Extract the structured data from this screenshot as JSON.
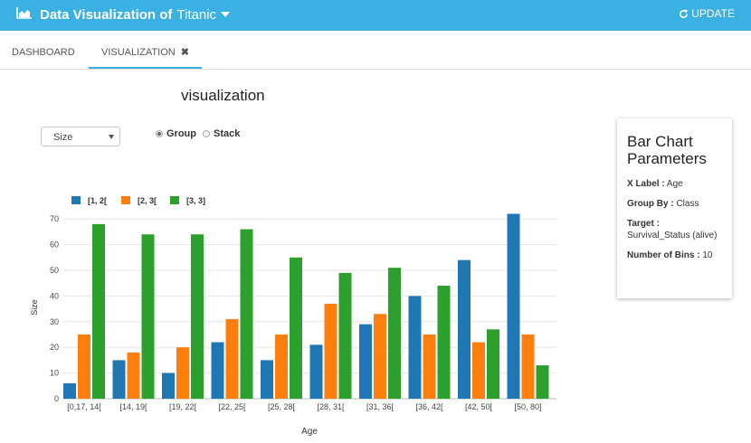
{
  "header": {
    "title_prefix": "Data Visualization of",
    "app_name": "Titanic",
    "update_label": "UPDATE"
  },
  "tabs": [
    {
      "label": "DASHBOARD"
    },
    {
      "label": "VISUALIZATION",
      "close": "✖"
    }
  ],
  "page": {
    "title": "visualization"
  },
  "controls": {
    "select_value": "Size",
    "modes": [
      {
        "label": "Group",
        "selected": true
      },
      {
        "label": "Stack",
        "selected": false
      }
    ]
  },
  "params": {
    "title": "Bar Chart Parameters",
    "x_label_key": "X Label :",
    "x_label_value": "Age",
    "group_by_key": "Group By :",
    "group_by_value": "Class",
    "target_key": "Target :",
    "target_value": "Survival_Status (alive)",
    "bins_key": "Number of Bins :",
    "bins_value": "10"
  },
  "chart_data": {
    "type": "bar",
    "mode": "group",
    "categories": [
      "[0,17, 14[",
      "[14, 19[",
      "[19, 22[",
      "[22, 25[",
      "[25, 28[",
      "[28, 31[",
      "[31, 36[",
      "[36, 42[",
      "[42, 50[",
      "[50, 80]"
    ],
    "series": [
      {
        "name": "[1, 2[",
        "color": "#1f77b4",
        "values": [
          6,
          15,
          10,
          22,
          15,
          21,
          29,
          40,
          54,
          72
        ]
      },
      {
        "name": "[2, 3[",
        "color": "#ff7f0e",
        "values": [
          25,
          18,
          20,
          31,
          25,
          37,
          33,
          25,
          22,
          25
        ]
      },
      {
        "name": "[3, 3]",
        "color": "#2ca02c",
        "values": [
          68,
          64,
          64,
          66,
          55,
          49,
          51,
          44,
          27,
          13
        ]
      }
    ],
    "xlabel": "Age",
    "ylabel": "Size",
    "ylim": [
      0,
      75
    ],
    "yticks": [
      0,
      10,
      20,
      30,
      40,
      50,
      60,
      70
    ],
    "grid": true,
    "legend": "top-left"
  }
}
